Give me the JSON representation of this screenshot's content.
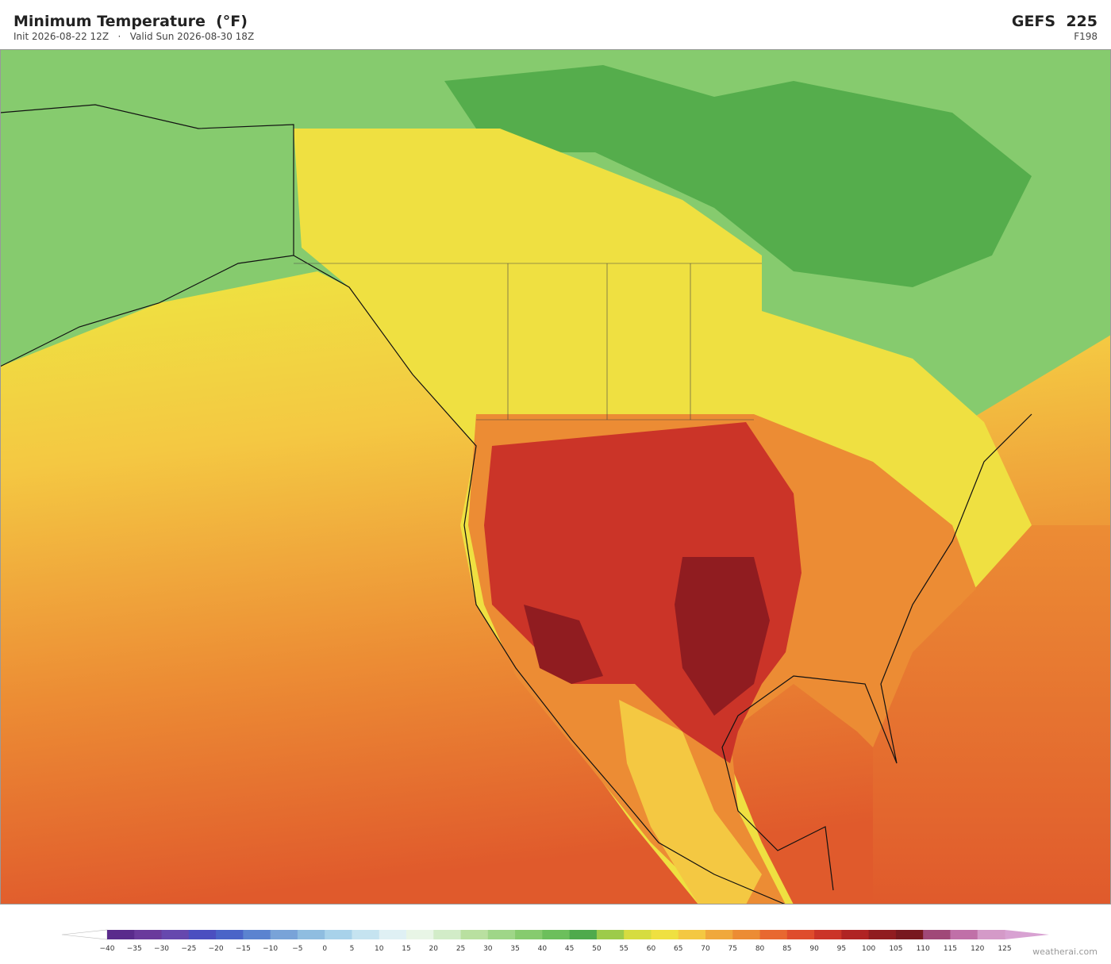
{
  "header": {
    "title": "Minimum Temperature  (°F)",
    "subtitle": "Init 2026-08-22 12Z   ·   Valid Sun 2026-08-30 18Z",
    "model": "GEFS  225",
    "forecast": "F198"
  },
  "colorbar": {
    "ticks": [
      "−40",
      "−35",
      "−30",
      "−25",
      "−20",
      "−15",
      "−10",
      "−5",
      "0",
      "5",
      "10",
      "15",
      "20",
      "25",
      "30",
      "35",
      "40",
      "45",
      "50",
      "55",
      "60",
      "65",
      "70",
      "75",
      "80",
      "85",
      "90",
      "95",
      "100",
      "105",
      "110",
      "115",
      "120",
      "125"
    ],
    "colors": [
      "#5a2b8c",
      "#6a3a9c",
      "#6648ae",
      "#4b4fc0",
      "#4a64c8",
      "#5b83d0",
      "#79a3d8",
      "#8fbde0",
      "#a8d2ea",
      "#c5e3f0",
      "#dff0f4",
      "#e8f5e6",
      "#d2ecc8",
      "#b9e0a0",
      "#9fd688",
      "#86cb6e",
      "#6cbf5c",
      "#4faa4c",
      "#9dcb4a",
      "#d6dc40",
      "#efe041",
      "#f4c842",
      "#f0a83c",
      "#ec8c34",
      "#e86830",
      "#df4c2c",
      "#cb3428",
      "#b02424",
      "#901c20",
      "#78181f",
      "#a04878",
      "#c070a8",
      "#d49ac8"
    ],
    "under_color": "#ffffff",
    "over_color": "#d8a2d2"
  },
  "credit": "weatherai.com"
}
